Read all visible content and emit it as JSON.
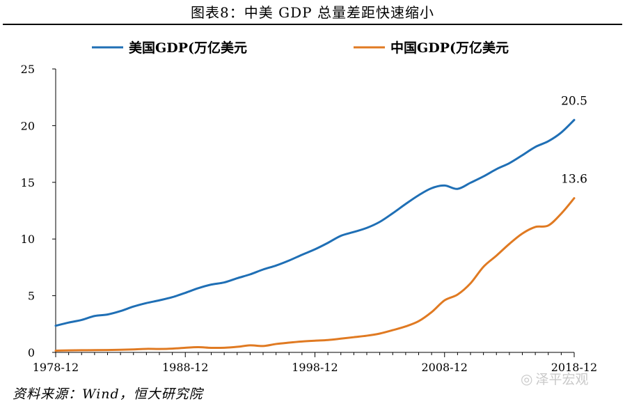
{
  "title": "图表8：中美 GDP 总量差距快速缩小",
  "source": "资料来源：Wind，恒大研究院",
  "watermark": "泽平宏观",
  "watermark_icon": "wechat-icon",
  "colors": {
    "us": "#1f6fb5",
    "china": "#e07a22",
    "axis": "#000000"
  },
  "chart_data": {
    "type": "line",
    "title": "中美 GDP 总量差距快速缩小",
    "xlabel": "",
    "ylabel": "",
    "xlim": [
      1978,
      2018
    ],
    "ylim": [
      0,
      25
    ],
    "yticks": [
      0,
      5,
      10,
      15,
      20,
      25
    ],
    "xtick_labels": [
      "1978-12",
      "1988-12",
      "1998-12",
      "2008-12",
      "2018-12"
    ],
    "xticks": [
      1978,
      1988,
      1998,
      2008,
      2018
    ],
    "legend_position": "top",
    "series": [
      {
        "name": "美国GDP(万亿美元",
        "key": "us",
        "x": [
          1978,
          1979,
          1980,
          1981,
          1982,
          1983,
          1984,
          1985,
          1986,
          1987,
          1988,
          1989,
          1990,
          1991,
          1992,
          1993,
          1994,
          1995,
          1996,
          1997,
          1998,
          1999,
          2000,
          2001,
          2002,
          2003,
          2004,
          2005,
          2006,
          2007,
          2008,
          2009,
          2010,
          2011,
          2012,
          2013,
          2014,
          2015,
          2016,
          2017,
          2018
        ],
        "values": [
          2.35,
          2.63,
          2.86,
          3.21,
          3.34,
          3.64,
          4.04,
          4.35,
          4.59,
          4.87,
          5.25,
          5.66,
          5.98,
          6.17,
          6.54,
          6.88,
          7.31,
          7.66,
          8.1,
          8.61,
          9.09,
          9.66,
          10.28,
          10.62,
          10.98,
          11.51,
          12.27,
          13.09,
          13.86,
          14.48,
          14.72,
          14.42,
          14.96,
          15.52,
          16.16,
          16.69,
          17.39,
          18.12,
          18.62,
          19.39,
          20.5
        ],
        "end_label": "20.5"
      },
      {
        "name": "中国GDP(万亿美元",
        "key": "china",
        "x": [
          1978,
          1979,
          1980,
          1981,
          1982,
          1983,
          1984,
          1985,
          1986,
          1987,
          1988,
          1989,
          1990,
          1991,
          1992,
          1993,
          1994,
          1995,
          1996,
          1997,
          1998,
          1999,
          2000,
          2001,
          2002,
          2003,
          2004,
          2005,
          2006,
          2007,
          2008,
          2009,
          2010,
          2011,
          2012,
          2013,
          2014,
          2015,
          2016,
          2017,
          2018
        ],
        "values": [
          0.15,
          0.18,
          0.19,
          0.2,
          0.21,
          0.23,
          0.26,
          0.31,
          0.3,
          0.33,
          0.41,
          0.46,
          0.4,
          0.41,
          0.49,
          0.62,
          0.56,
          0.74,
          0.86,
          0.96,
          1.03,
          1.09,
          1.21,
          1.34,
          1.47,
          1.66,
          1.96,
          2.29,
          2.75,
          3.55,
          4.59,
          5.1,
          6.09,
          7.55,
          8.53,
          9.57,
          10.48,
          11.06,
          11.19,
          12.24,
          13.6
        ],
        "end_label": "13.6"
      }
    ]
  }
}
